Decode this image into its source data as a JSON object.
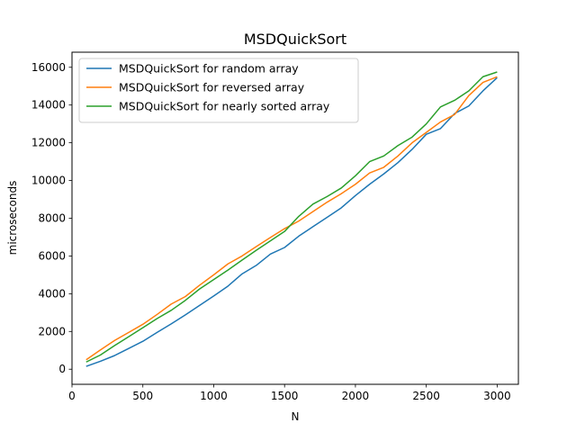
{
  "chart_data": {
    "type": "line",
    "title": "MSDQuickSort",
    "xlabel": "N",
    "ylabel": "microseconds",
    "xlim": [
      0,
      3150
    ],
    "ylim": [
      -800,
      16800
    ],
    "x_ticks": [
      0,
      500,
      1000,
      1500,
      2000,
      2500,
      3000
    ],
    "y_ticks": [
      0,
      2000,
      4000,
      6000,
      8000,
      10000,
      12000,
      14000,
      16000
    ],
    "x_tick_labels": [
      "0",
      "500",
      "1000",
      "1500",
      "2000",
      "2500",
      "3000"
    ],
    "y_tick_labels": [
      "0",
      "2000",
      "4000",
      "6000",
      "8000",
      "10000",
      "12000",
      "14000",
      "16000"
    ],
    "grid": false,
    "legend_position": "top-left",
    "x": [
      100,
      200,
      300,
      400,
      500,
      600,
      700,
      800,
      900,
      1000,
      1100,
      1200,
      1300,
      1400,
      1500,
      1600,
      1700,
      1800,
      1900,
      2000,
      2100,
      2200,
      2300,
      2400,
      2500,
      2600,
      2700,
      2800,
      2900,
      3000
    ],
    "series": [
      {
        "name": "MSDQuickSort for random array",
        "color": "#1f77b4",
        "values": [
          150,
          420,
          720,
          1100,
          1480,
          1950,
          2400,
          2880,
          3380,
          3880,
          4400,
          5050,
          5500,
          6100,
          6450,
          7050,
          7550,
          8050,
          8550,
          9200,
          9800,
          10350,
          10950,
          11650,
          12450,
          12750,
          13550,
          13950,
          14750,
          15450
        ]
      },
      {
        "name": "MSDQuickSort for reversed array",
        "color": "#ff7f0e",
        "values": [
          500,
          1020,
          1520,
          1950,
          2380,
          2900,
          3450,
          3850,
          4450,
          5000,
          5580,
          6000,
          6500,
          6980,
          7450,
          7850,
          8350,
          8850,
          9300,
          9800,
          10400,
          10700,
          11300,
          12000,
          12550,
          13100,
          13500,
          14500,
          15200,
          15500
        ]
      },
      {
        "name": "MSDQuickSort for nearly sorted array",
        "color": "#2ca02c",
        "values": [
          380,
          750,
          1250,
          1720,
          2200,
          2680,
          3120,
          3650,
          4250,
          4750,
          5250,
          5780,
          6300,
          6800,
          7300,
          8100,
          8750,
          9150,
          9600,
          10250,
          11000,
          11300,
          11850,
          12300,
          13000,
          13900,
          14250,
          14750,
          15500,
          15750
        ]
      }
    ]
  }
}
